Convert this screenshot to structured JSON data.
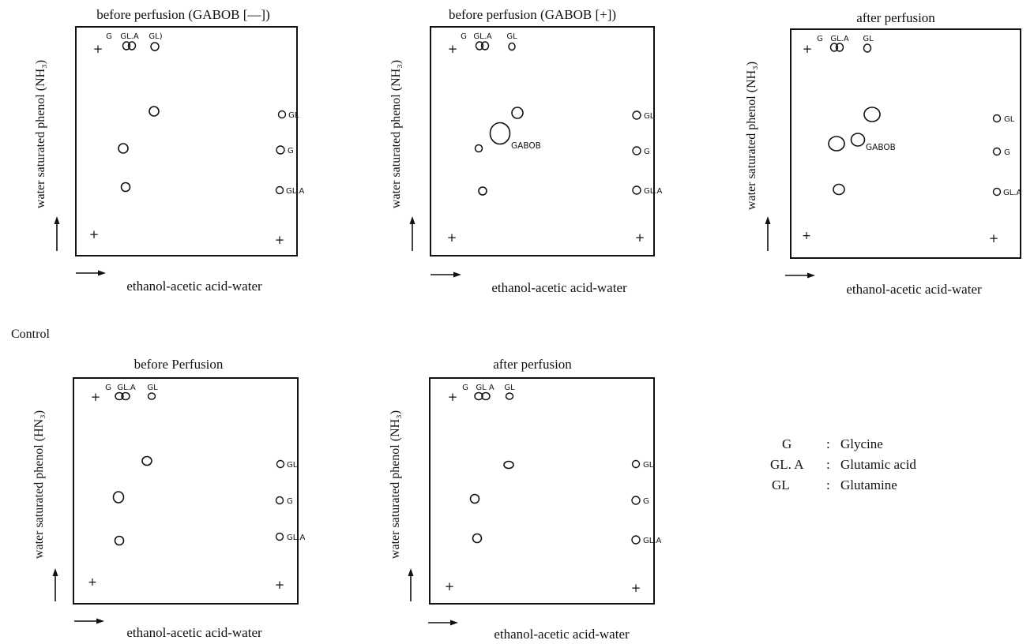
{
  "section_label": "Control",
  "panels": [
    {
      "id": "gabob-minus",
      "title": "before perfusion (GABOB [—])",
      "y_axis_label": "water saturated phenol (NH₃)",
      "x_axis_label": "ethanol-acetic acid-water",
      "top_labels": [
        "G",
        "GL.A",
        "GL)"
      ],
      "right_spots": [
        {
          "key": "gl",
          "label": "GL"
        },
        {
          "key": "g",
          "label": "G"
        },
        {
          "key": "gla",
          "label": "GL.A"
        }
      ],
      "extra_label": ""
    },
    {
      "id": "gabob-plus",
      "title": "before perfusion (GABOB [+])",
      "y_axis_label": "water saturated phenol (NH₃)",
      "x_axis_label": "ethanol-acetic acid-water",
      "top_labels": [
        "G",
        "GL.A",
        "GL"
      ],
      "right_spots": [
        {
          "key": "gl",
          "label": "GL"
        },
        {
          "key": "g",
          "label": "G"
        },
        {
          "key": "gla",
          "label": "GL.A"
        }
      ],
      "extra_label": "GABOB"
    },
    {
      "id": "after",
      "title": "after perfusion",
      "y_axis_label": "water saturated phenol (NH₃)",
      "x_axis_label": "ethanol-acetic acid-water",
      "top_labels": [
        "G",
        "GL.A",
        "GL"
      ],
      "right_spots": [
        {
          "key": "gl",
          "label": "GL"
        },
        {
          "key": "g",
          "label": "G"
        },
        {
          "key": "gla",
          "label": "GL.A"
        }
      ],
      "extra_label": "GABOB"
    },
    {
      "id": "control-before",
      "title": "before Perfusion",
      "y_axis_label": "water saturated phenol (HN₃)",
      "x_axis_label": "ethanol-acetic acid-water",
      "top_labels": [
        "G",
        "GL.A",
        "GL"
      ],
      "right_spots": [
        {
          "key": "gl",
          "label": "GL"
        },
        {
          "key": "g",
          "label": "G"
        },
        {
          "key": "gla",
          "label": "GL.A"
        }
      ],
      "extra_label": ""
    },
    {
      "id": "control-after",
      "title": "after perfusion",
      "y_axis_label": "water saturated phenol (NH₃)",
      "x_axis_label": "ethanol-acetic acid-water",
      "top_labels": [
        "G",
        "GL A",
        "GL"
      ],
      "right_spots": [
        {
          "key": "gl",
          "label": "GL"
        },
        {
          "key": "g",
          "label": "G"
        },
        {
          "key": "gla",
          "label": "GL.A"
        }
      ],
      "extra_label": ""
    }
  ],
  "legend": [
    {
      "abbr": "G",
      "sep": ":",
      "name": "Glycine"
    },
    {
      "abbr": "GL. A",
      "sep": ":",
      "name": "Glutamic acid"
    },
    {
      "abbr": "GL",
      "sep": ":",
      "name": "Glutamine"
    }
  ]
}
